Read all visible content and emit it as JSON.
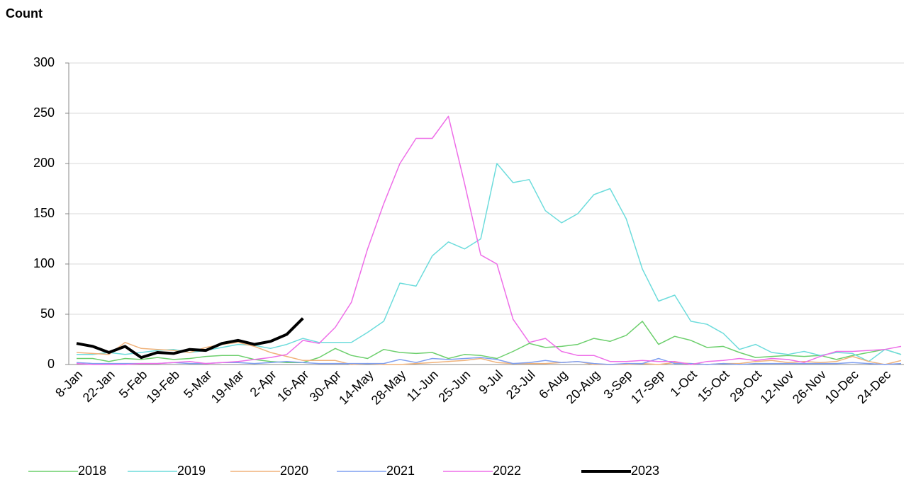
{
  "chart_data": {
    "type": "line",
    "y_label": "Count",
    "categories": [
      "8-Jan",
      null,
      "22-Jan",
      null,
      "5-Feb",
      null,
      "19-Feb",
      null,
      "5-Mar",
      null,
      "19-Mar",
      null,
      "2-Apr",
      null,
      "16-Apr",
      null,
      "30-Apr",
      null,
      "14-May",
      null,
      "28-May",
      null,
      "11-Jun",
      null,
      "25-Jun",
      null,
      "9-Jul",
      null,
      "23-Jul",
      null,
      "6-Aug",
      null,
      "20-Aug",
      null,
      "3-Sep",
      null,
      "17-Sep",
      null,
      "1-Oct",
      null,
      "15-Oct",
      null,
      "29-Oct",
      null,
      "12-Nov",
      null,
      "26-Nov",
      null,
      "10-Dec",
      null,
      "24-Dec",
      null
    ],
    "ylim": [
      0,
      300
    ],
    "yticks": [
      0,
      50,
      100,
      150,
      200,
      250,
      300
    ],
    "grid": true,
    "legend": "bottom",
    "series": [
      {
        "name": "2018",
        "color": "#6ccf6c",
        "width": 1.5,
        "values": [
          6,
          6,
          3,
          6,
          5,
          7,
          5,
          6,
          8,
          9,
          9,
          5,
          3,
          2,
          2,
          7,
          16,
          9,
          6,
          15,
          12,
          11,
          12,
          6,
          10,
          9,
          6,
          13,
          21,
          17,
          18,
          20,
          26,
          23,
          29,
          43,
          20,
          28,
          24,
          17,
          18,
          12,
          7,
          8,
          9,
          8,
          9,
          5,
          9,
          12,
          15,
          10
        ]
      },
      {
        "name": "2019",
        "color": "#6ddcdc",
        "width": 1.5,
        "values": [
          10,
          10,
          12,
          10,
          12,
          14,
          15,
          12,
          14,
          17,
          20,
          19,
          16,
          20,
          26,
          22,
          22,
          22,
          32,
          43,
          81,
          78,
          108,
          122,
          115,
          125,
          200,
          181,
          184,
          153,
          141,
          150,
          169,
          175,
          145,
          95,
          63,
          69,
          43,
          40,
          31,
          15,
          20,
          12,
          10,
          13,
          9,
          12,
          11,
          3,
          15,
          10
        ]
      },
      {
        "name": "2020",
        "color": "#f0b27a",
        "width": 1.5,
        "values": [
          12,
          11,
          10,
          22,
          16,
          15,
          14,
          12,
          17,
          20,
          22,
          18,
          12,
          8,
          4,
          4,
          4,
          0,
          1,
          0,
          0,
          1,
          2,
          3,
          4,
          6,
          2,
          1,
          1,
          1,
          2,
          3,
          0,
          0,
          0,
          1,
          0,
          2,
          1,
          0,
          1,
          1,
          3,
          4,
          2,
          3,
          2,
          3,
          8,
          3,
          0,
          4
        ]
      },
      {
        "name": "2021",
        "color": "#7f9ff0",
        "width": 1.5,
        "values": [
          2,
          1,
          1,
          1,
          1,
          1,
          2,
          1,
          1,
          2,
          2,
          1,
          2,
          3,
          2,
          1,
          1,
          1,
          1,
          1,
          5,
          2,
          6,
          5,
          6,
          7,
          5,
          1,
          2,
          4,
          2,
          3,
          1,
          0,
          1,
          1,
          6,
          1,
          1,
          0,
          1,
          0,
          1,
          1,
          1,
          1,
          1,
          1,
          2,
          1,
          0,
          1
        ]
      },
      {
        "name": "2022",
        "color": "#ee6ee8",
        "width": 1.5,
        "values": [
          1,
          0,
          0,
          0,
          1,
          1,
          2,
          3,
          1,
          2,
          3,
          5,
          7,
          10,
          24,
          21,
          37,
          62,
          115,
          160,
          200,
          225,
          225,
          247,
          180,
          109,
          100,
          45,
          22,
          26,
          13,
          9,
          9,
          3,
          3,
          4,
          3,
          3,
          0,
          3,
          4,
          6,
          4,
          6,
          5,
          2,
          8,
          13,
          13,
          14,
          15,
          18
        ]
      },
      {
        "name": "2023",
        "color": "#000000",
        "width": 4,
        "values": [
          21,
          18,
          12,
          18,
          7,
          12,
          11,
          15,
          14,
          21,
          24,
          20,
          23,
          30,
          46,
          null,
          null,
          null,
          null,
          null,
          null,
          null,
          null,
          null,
          null,
          null,
          null,
          null,
          null,
          null,
          null,
          null,
          null,
          null,
          null,
          null,
          null,
          null,
          null,
          null,
          null,
          null,
          null,
          null,
          null,
          null,
          null,
          null,
          null,
          null,
          null,
          null
        ]
      }
    ]
  }
}
